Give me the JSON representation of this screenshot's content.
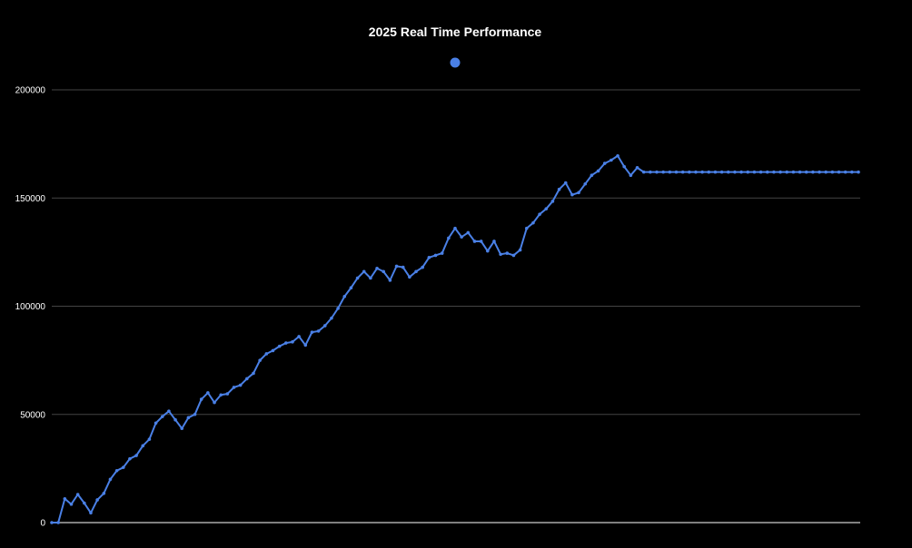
{
  "chart_data": {
    "type": "line",
    "title": "2025 Real Time Performance",
    "xlabel": "",
    "ylabel": "",
    "ylim": [
      0,
      200000
    ],
    "yticks": [
      "0",
      "50000",
      "100000",
      "150000",
      "200000"
    ],
    "grid": true,
    "legend": "top-center",
    "series": [
      {
        "name": "",
        "color": "#4a80e6",
        "values": [
          0,
          0,
          11000,
          8500,
          13000,
          9000,
          4500,
          10500,
          13500,
          20000,
          24000,
          25500,
          29500,
          31000,
          35500,
          38500,
          46000,
          49000,
          51500,
          47500,
          43500,
          48500,
          50000,
          57000,
          60000,
          55500,
          59000,
          59500,
          62500,
          63500,
          66500,
          69000,
          75000,
          78000,
          79500,
          81500,
          83000,
          83500,
          86000,
          82000,
          88000,
          88500,
          91000,
          94500,
          99000,
          104500,
          108500,
          113000,
          116000,
          113000,
          117500,
          116000,
          112000,
          118500,
          118000,
          113500,
          116000,
          118000,
          122500,
          123500,
          124500,
          131500,
          136000,
          132000,
          134000,
          130000,
          130000,
          125500,
          130000,
          124000,
          124500,
          123500,
          126000,
          136000,
          138500,
          142500,
          145000,
          148500,
          154000,
          157000,
          151500,
          152500,
          156500,
          160500,
          162500,
          166000,
          167500,
          169500,
          164500,
          160500,
          164000,
          162000,
          162000,
          162000,
          162000,
          162000,
          162000,
          162000,
          162000,
          162000,
          162000,
          162000,
          162000,
          162000,
          162000,
          162000,
          162000,
          162000,
          162000,
          162000,
          162000,
          162000,
          162000,
          162000,
          162000,
          162000,
          162000,
          162000,
          162000,
          162000,
          162000,
          162000,
          162000,
          162000,
          162000
        ]
      }
    ]
  }
}
